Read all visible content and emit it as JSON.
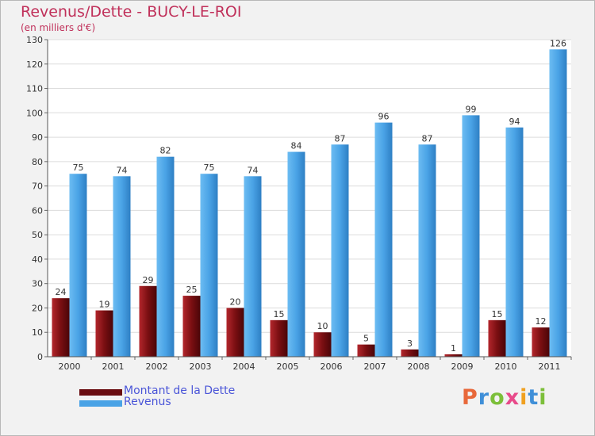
{
  "chart_data": {
    "type": "bar",
    "title": "Revenus/Dette - BUCY-LE-ROI",
    "subtitle": "(en milliers d'€)",
    "xlabel": "",
    "ylabel": "",
    "ylim": [
      0,
      130
    ],
    "yticks": [
      0,
      10,
      20,
      30,
      40,
      50,
      60,
      70,
      80,
      90,
      100,
      110,
      120,
      130
    ],
    "categories": [
      "2000",
      "2001",
      "2002",
      "2003",
      "2004",
      "2005",
      "2006",
      "2007",
      "2008",
      "2009",
      "2010",
      "2011"
    ],
    "series": [
      {
        "name": "Montant de la Dette",
        "color": "#7a0f12",
        "values": [
          24,
          19,
          29,
          25,
          20,
          15,
          10,
          5,
          3,
          1,
          15,
          12
        ]
      },
      {
        "name": "Revenus",
        "color": "#4aa3e6",
        "values": [
          75,
          74,
          82,
          75,
          74,
          84,
          87,
          96,
          87,
          99,
          94,
          126
        ]
      }
    ],
    "grid": true,
    "legend": "bottom-left"
  },
  "logo": {
    "text": "Proxiti",
    "colors": [
      "#e8683a",
      "#3f8fd8",
      "#7cbf3a",
      "#e84a8a",
      "#f0a020",
      "#3f8fd8",
      "#7cbf3a"
    ]
  }
}
